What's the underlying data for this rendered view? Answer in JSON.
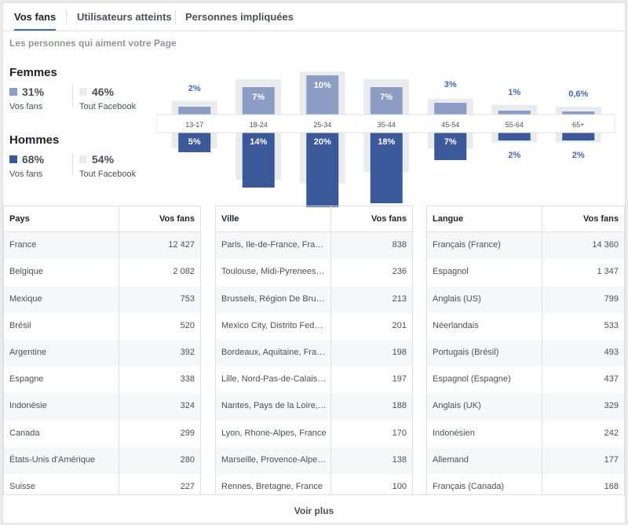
{
  "tabs": [
    "Vos fans",
    "Utilisateurs atteints",
    "Personnes impliquées"
  ],
  "subtitle": "Les personnes qui aiment votre Page",
  "women": {
    "heading": "Femmes",
    "fans_pct": "31%",
    "fans_label": "Vos fans",
    "fb_pct": "46%",
    "fb_label": "Tout Facebook",
    "color": "#8b9dc3"
  },
  "men": {
    "heading": "Hommes",
    "fans_pct": "68%",
    "fans_label": "Vos fans",
    "fb_pct": "54%",
    "fb_label": "Tout Facebook",
    "color": "#3b5998"
  },
  "chart_data": {
    "type": "bar",
    "categories": [
      "13-17",
      "18-24",
      "25-34",
      "35-44",
      "45-54",
      "55-64",
      "65+"
    ],
    "series": [
      {
        "name": "Femmes",
        "values": [
          2,
          7,
          10,
          7,
          3,
          1,
          0.6
        ],
        "labels": [
          "2%",
          "7%",
          "10%",
          "7%",
          "3%",
          "1%",
          "0,6%"
        ]
      },
      {
        "name": "Hommes",
        "values": [
          5,
          14,
          20,
          18,
          7,
          2,
          2
        ],
        "labels": [
          "5%",
          "14%",
          "20%",
          "18%",
          "7%",
          "2%",
          "2%"
        ]
      }
    ],
    "facebook_background": {
      "women": [
        3.5,
        9,
        11,
        9,
        4,
        2.5,
        2
      ],
      "men": [
        4,
        12,
        13,
        10,
        4,
        2.5,
        2.5
      ]
    }
  },
  "tables": [
    {
      "headers": [
        "Pays",
        "Vos fans"
      ],
      "rows": [
        [
          "France",
          "12 427"
        ],
        [
          "Belgique",
          "2 082"
        ],
        [
          "Mexique",
          "753"
        ],
        [
          "Brésil",
          "520"
        ],
        [
          "Argentine",
          "392"
        ],
        [
          "Espagne",
          "338"
        ],
        [
          "Indonésie",
          "324"
        ],
        [
          "Canada",
          "299"
        ],
        [
          "États-Unis d'Amérique",
          "280"
        ],
        [
          "Suisse",
          "227"
        ]
      ]
    },
    {
      "headers": [
        "Ville",
        "Vos fans"
      ],
      "rows": [
        [
          "Paris, Ile-de-France, France",
          "838"
        ],
        [
          "Toulouse, Midi-Pyrenees, ...",
          "236"
        ],
        [
          "Brussels, Région De Brux...",
          "213"
        ],
        [
          "Mexico City, Distrito Feder...",
          "201"
        ],
        [
          "Bordeaux, Aquitaine, France",
          "198"
        ],
        [
          "Lille, Nord-Pas-de-Calais, ...",
          "197"
        ],
        [
          "Nantes, Pays de la Loire, ...",
          "188"
        ],
        [
          "Lyon, Rhone-Alpes, France",
          "170"
        ],
        [
          "Marseille, Provence-Alpes...",
          "138"
        ],
        [
          "Rennes, Bretagne, France",
          "100"
        ]
      ]
    },
    {
      "headers": [
        "Langue",
        "Vos fans"
      ],
      "rows": [
        [
          "Français (France)",
          "14 360"
        ],
        [
          "Espagnol",
          "1 347"
        ],
        [
          "Anglais (US)",
          "799"
        ],
        [
          "Néerlandais",
          "533"
        ],
        [
          "Portugais (Brésil)",
          "493"
        ],
        [
          "Espagnol (Espagne)",
          "437"
        ],
        [
          "Anglais (UK)",
          "329"
        ],
        [
          "Indonésien",
          "242"
        ],
        [
          "Allemand",
          "177"
        ],
        [
          "Français (Canada)",
          "168"
        ]
      ]
    }
  ],
  "footer": "Voir plus"
}
